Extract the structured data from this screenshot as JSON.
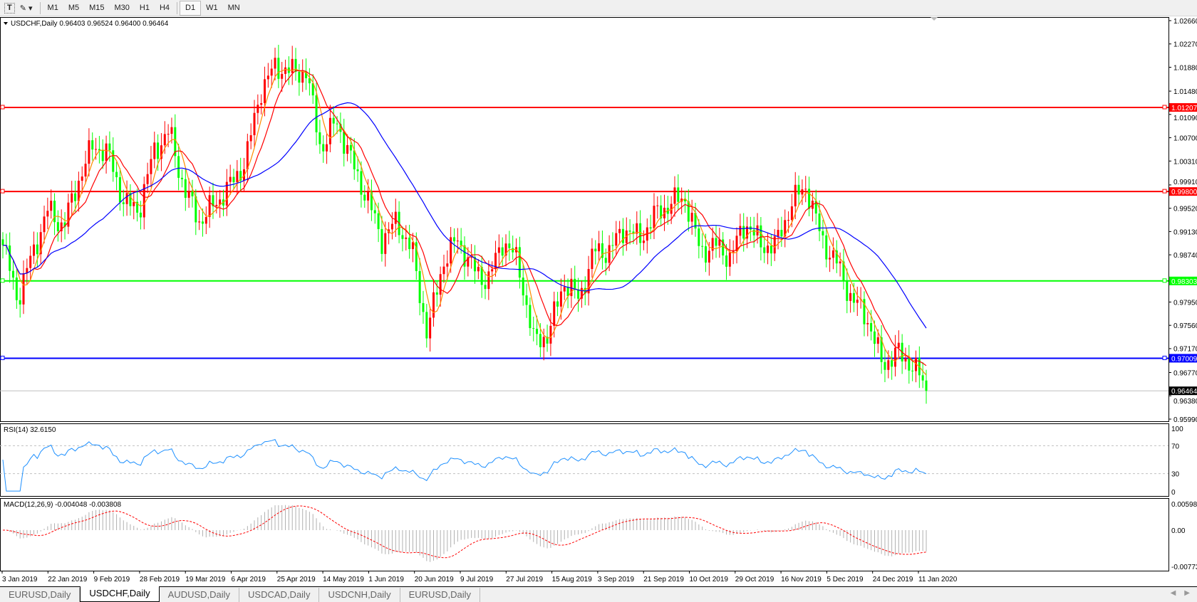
{
  "toolbar": {
    "periods": [
      "M1",
      "M5",
      "M15",
      "M30",
      "H1",
      "H4",
      "D1",
      "W1",
      "MN"
    ],
    "active": "D1"
  },
  "chart": {
    "header": "USDCHF,Daily  0.96403 0.96524 0.96400 0.96464",
    "symbol": "USDCHF",
    "timeframe": "Daily",
    "ohlc": {
      "open": 0.96403,
      "high": 0.96524,
      "low": 0.964,
      "close": 0.96464
    },
    "colors": {
      "bull": "#ff0000",
      "bear": "#00ff00",
      "ma_fast": "#ff8c00",
      "ma_mid": "#ff0000",
      "ma_slow": "#0000ff"
    }
  },
  "chart_data": {
    "type": "candlestick",
    "price_axis": [
      "1.02660",
      "1.02270",
      "1.01880",
      "1.01480",
      "1.01090",
      "1.00700",
      "1.00310",
      "0.99910",
      "0.99520",
      "0.99130",
      "0.98740",
      "0.97950",
      "0.97560",
      "0.97170",
      "0.96770",
      "0.96380",
      "0.95990"
    ],
    "ylim": [
      0.9599,
      1.0266
    ],
    "date_axis": [
      "3 Jan 2019",
      "22 Jan 2019",
      "9 Feb 2019",
      "28 Feb 2019",
      "19 Mar 2019",
      "6 Apr 2019",
      "25 Apr 2019",
      "14 May 2019",
      "1 Jun 2019",
      "20 Jun 2019",
      "9 Jul 2019",
      "27 Jul 2019",
      "15 Aug 2019",
      "3 Sep 2019",
      "21 Sep 2019",
      "10 Oct 2019",
      "29 Oct 2019",
      "16 Nov 2019",
      "5 Dec 2019",
      "24 Dec 2019",
      "11 Jan 2020"
    ],
    "approx_closes": [
      0.989,
      0.98,
      0.988,
      0.995,
      0.992,
      1.0,
      1.006,
      1.004,
      0.996,
      0.995,
      1.005,
      1.008,
      0.998,
      0.993,
      0.996,
      0.999,
      1.003,
      1.015,
      1.019,
      1.018,
      1.018,
      1.005,
      1.01,
      1.003,
      0.997,
      0.99,
      0.993,
      0.988,
      0.974,
      0.986,
      0.99,
      0.985,
      0.983,
      0.99,
      0.986,
      0.973,
      0.974,
      0.983,
      0.98,
      0.988,
      0.988,
      0.992,
      0.99,
      0.994,
      0.996,
      0.997,
      0.988,
      0.989,
      0.987,
      0.993,
      0.989,
      0.989,
      0.996,
      0.999,
      0.99,
      0.986,
      0.98,
      0.977,
      0.969,
      0.971,
      0.969,
      0.96464
    ],
    "levels": [
      {
        "price": 1.01207,
        "label": "1.01207",
        "color": "#ff0000"
      },
      {
        "price": 0.998,
        "label": "0.99800",
        "color": "#ff0000"
      },
      {
        "price": 0.98303,
        "label": "0.98303",
        "color": "#00ff00"
      },
      {
        "price": 0.97009,
        "label": "0.97009",
        "color": "#0000ff"
      }
    ],
    "current": {
      "price": 0.96464,
      "label": "0.96464"
    },
    "rsi": {
      "label": "RSI(14) 32.6150",
      "levels": [
        "100",
        "70",
        "30",
        "0"
      ]
    },
    "macd": {
      "label": "MACD(12,26,9) -0.004048 -0.003808",
      "axis": [
        "0.005986",
        "0.00",
        "-0.007733"
      ],
      "max": 0.005986,
      "min": -0.007733
    }
  },
  "tabs": [
    "EURUSD,Daily",
    "USDCHF,Daily",
    "AUDUSD,Daily",
    "USDCAD,Daily",
    "USDCNH,Daily",
    "EURUSD,Daily"
  ],
  "active_tab": 1
}
